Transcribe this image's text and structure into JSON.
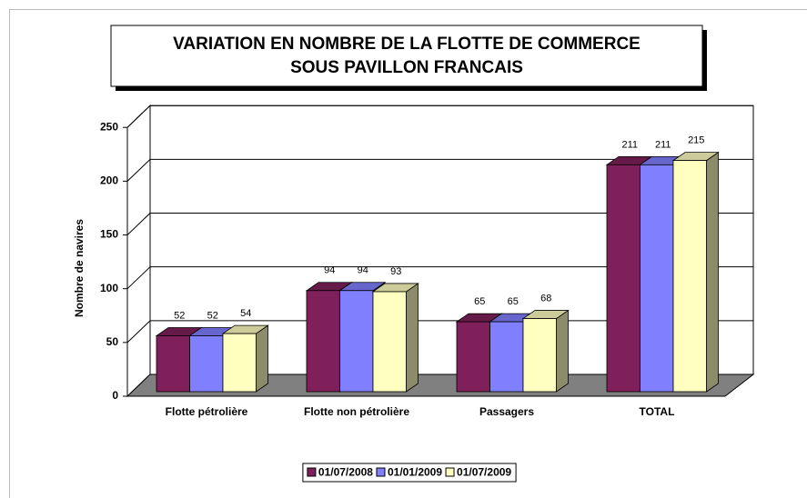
{
  "chart_data": {
    "type": "bar",
    "title": "VARIATION EN NOMBRE DE LA FLOTTE DE COMMERCE SOUS PAVILLON FRANCAIS",
    "y_label": "Nombre de navires",
    "categories": [
      "Flotte pétrolière",
      "Flotte non pétrolière",
      "Passagers",
      "TOTAL"
    ],
    "series": [
      {
        "name": "01/07/2008",
        "color": "#80205a",
        "values": [
          52,
          94,
          65,
          211
        ]
      },
      {
        "name": "01/01/2009",
        "color": "#8080ff",
        "values": [
          52,
          94,
          65,
          211
        ]
      },
      {
        "name": "01/07/2009",
        "color": "#ffffc0",
        "values": [
          54,
          93,
          68,
          215
        ]
      }
    ],
    "ylim": [
      0,
      250
    ],
    "yticks": [
      0,
      50,
      100,
      150,
      200,
      250
    ],
    "grid": true,
    "legend": "bottom"
  }
}
